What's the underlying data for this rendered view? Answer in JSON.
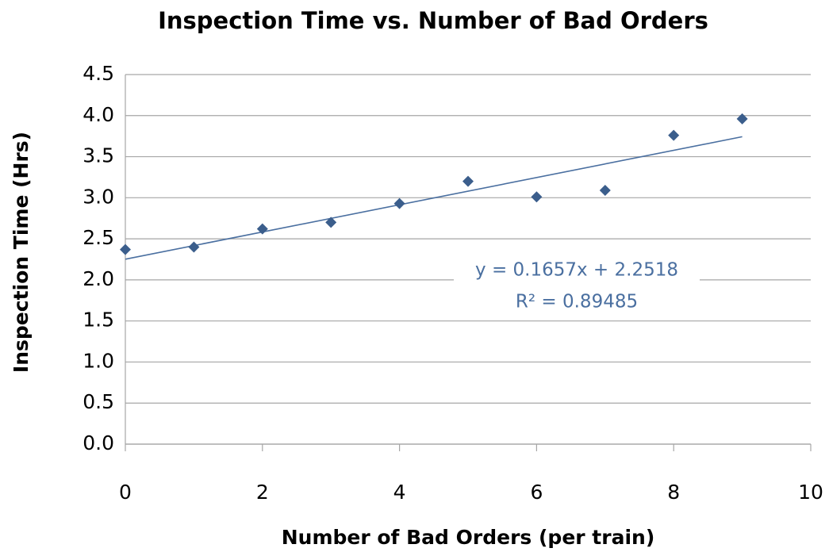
{
  "chart_data": {
    "type": "scatter",
    "title": "Inspection Time vs. Number of Bad Orders",
    "x_label": "Number of Bad Orders (per train)",
    "y_label": "Inspection Time (Hrs)",
    "x": [
      0,
      1,
      2,
      3,
      4,
      5,
      6,
      7,
      8,
      9
    ],
    "y": [
      2.37,
      2.4,
      2.62,
      2.7,
      2.93,
      3.2,
      3.01,
      3.09,
      3.76,
      3.96
    ],
    "color": "#3b5e8c",
    "xlim": [
      0,
      10
    ],
    "xticks": [
      0,
      2,
      4,
      6,
      8,
      10
    ],
    "ylim": [
      0,
      4.5
    ],
    "yticks": [
      {
        "value": 0,
        "label": "0.0"
      },
      {
        "value": 0.5,
        "label": "0.5"
      },
      {
        "value": 1,
        "label": "1.0"
      },
      {
        "value": 1.5,
        "label": "1.5"
      },
      {
        "value": 2,
        "label": "2.0"
      },
      {
        "value": 2.5,
        "label": "2.5"
      },
      {
        "value": 3,
        "label": "3.0"
      },
      {
        "value": 3.5,
        "label": "3.5"
      },
      {
        "value": 4,
        "label": "4.0"
      },
      {
        "value": 4.5,
        "label": "4.5"
      }
    ],
    "grid": true,
    "trendline": {
      "slope": 0.1657,
      "intercept": 2.2518,
      "color": "#4a6fa0",
      "equation_label": "y = 0.1657x + 2.2518",
      "r2_label": "R² = 0.89485"
    }
  }
}
